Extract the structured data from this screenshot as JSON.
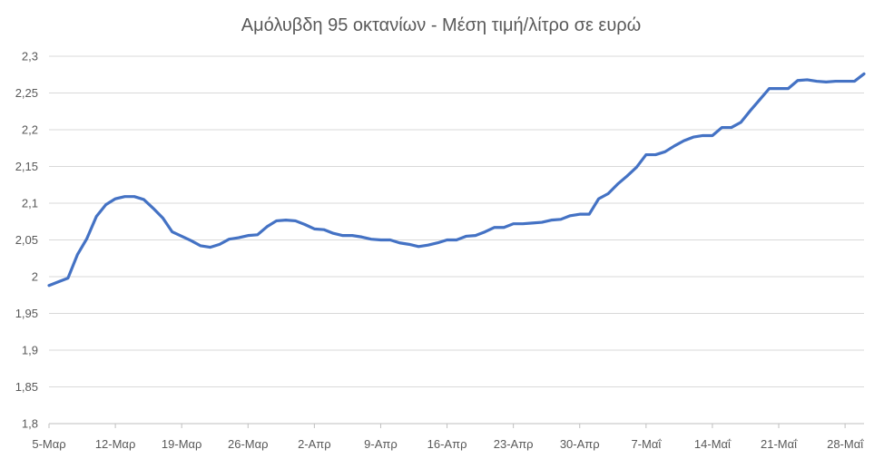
{
  "chart_data": {
    "type": "line",
    "title": "Αμόλυβδη 95 οκτανίων - Μέση τιμή/λίτρο σε ευρώ",
    "xlabel": "",
    "ylabel": "",
    "ylim": [
      1.8,
      2.3
    ],
    "y_ticks": [
      "1,8",
      "1,85",
      "1,9",
      "1,95",
      "2",
      "2,05",
      "2,1",
      "2,15",
      "2,2",
      "2,25",
      "2,3"
    ],
    "x_ticks": [
      "5-Μαρ",
      "12-Μαρ",
      "19-Μαρ",
      "26-Μαρ",
      "2-Απρ",
      "9-Απρ",
      "16-Απρ",
      "23-Απρ",
      "30-Απρ",
      "7-Μαΐ",
      "14-Μαΐ",
      "21-Μαΐ",
      "28-Μαΐ"
    ],
    "grid": true,
    "legend": "none",
    "colors": {
      "series": "#4472c4",
      "grid": "#d9d9d9",
      "text": "#595959"
    },
    "series": [
      {
        "values": [
          1.988,
          1.993,
          1.998,
          2.03,
          2.052,
          2.082,
          2.098,
          2.106,
          2.109,
          2.109,
          2.105,
          2.093,
          2.08,
          2.061,
          2.055,
          2.049,
          2.042,
          2.04,
          2.044,
          2.051,
          2.053,
          2.056,
          2.057,
          2.068,
          2.076,
          2.077,
          2.076,
          2.071,
          2.065,
          2.064,
          2.059,
          2.056,
          2.056,
          2.054,
          2.051,
          2.05,
          2.05,
          2.046,
          2.044,
          2.041,
          2.043,
          2.046,
          2.05,
          2.05,
          2.055,
          2.056,
          2.061,
          2.067,
          2.067,
          2.072,
          2.072,
          2.073,
          2.074,
          2.077,
          2.078,
          2.083,
          2.085,
          2.085,
          2.106,
          2.113,
          2.126,
          2.137,
          2.149,
          2.166,
          2.166,
          2.17,
          2.178,
          2.185,
          2.19,
          2.192,
          2.192,
          2.203,
          2.203,
          2.21,
          2.226,
          2.241,
          2.256,
          2.256,
          2.256,
          2.267,
          2.268,
          2.266,
          2.265,
          2.266,
          2.266,
          2.266,
          2.276
        ]
      }
    ]
  }
}
